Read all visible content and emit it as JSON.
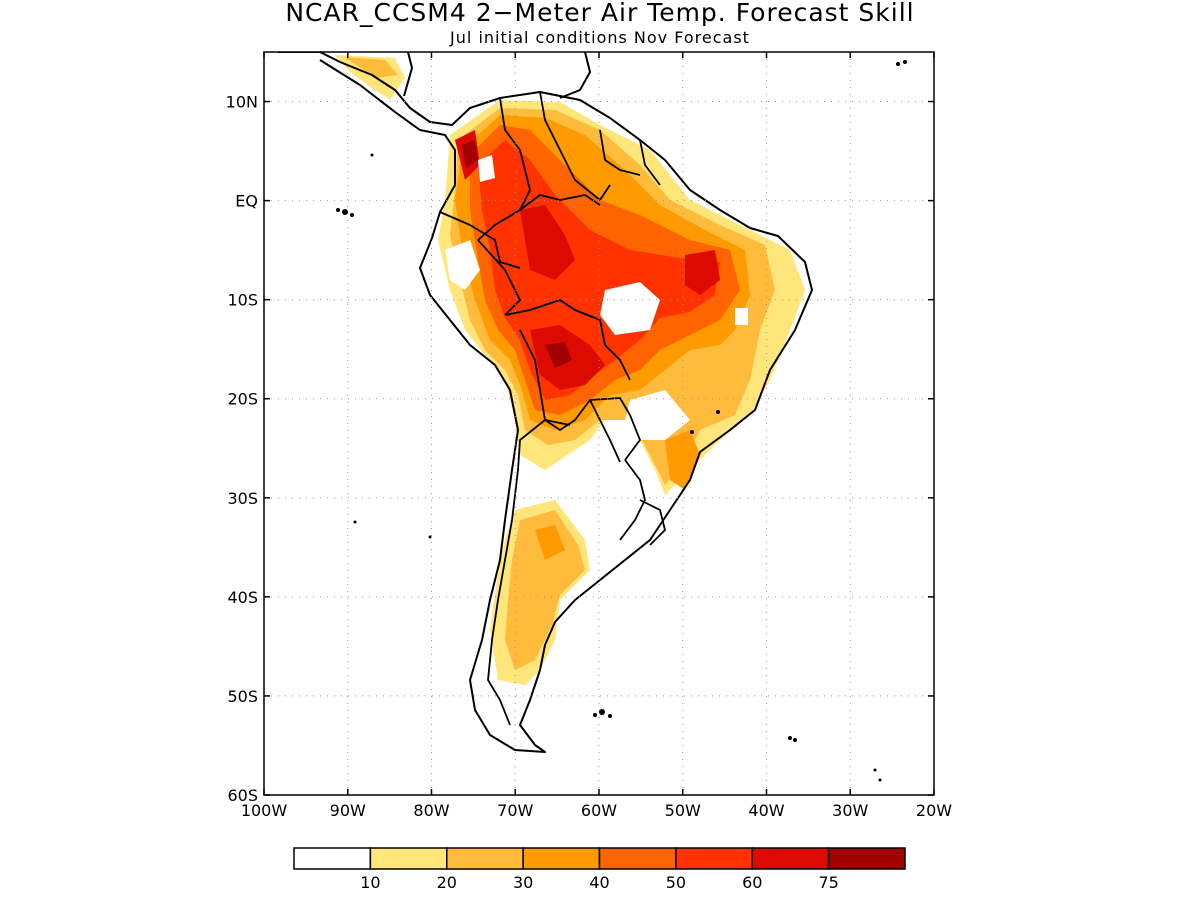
{
  "title": "NCAR_CCSM4 2−Meter Air Temp. Forecast Skill",
  "subtitle": "Jul initial conditions  Nov Forecast",
  "map": {
    "lon_range": [
      -100,
      -20
    ],
    "lat_range": [
      -60,
      15
    ],
    "lon_ticks": [
      {
        "value": -100,
        "label": "100W"
      },
      {
        "value": -90,
        "label": "90W"
      },
      {
        "value": -80,
        "label": "80W"
      },
      {
        "value": -70,
        "label": "70W"
      },
      {
        "value": -60,
        "label": "60W"
      },
      {
        "value": -50,
        "label": "50W"
      },
      {
        "value": -40,
        "label": "40W"
      },
      {
        "value": -30,
        "label": "30W"
      },
      {
        "value": -20,
        "label": "20W"
      }
    ],
    "lat_ticks": [
      {
        "value": 10,
        "label": "10N"
      },
      {
        "value": 0,
        "label": "EQ"
      },
      {
        "value": -10,
        "label": "10S"
      },
      {
        "value": -20,
        "label": "20S"
      },
      {
        "value": -30,
        "label": "30S"
      },
      {
        "value": -40,
        "label": "40S"
      },
      {
        "value": -50,
        "label": "50S"
      },
      {
        "value": -60,
        "label": "60S"
      }
    ],
    "grid": "dotted"
  },
  "legend": {
    "labels": [
      "10",
      "20",
      "30",
      "40",
      "50",
      "60",
      "75"
    ],
    "colors": [
      "#ffffff",
      "#ffe57a",
      "#ffbb3c",
      "#ff9a00",
      "#ff6400",
      "#ff3200",
      "#dc0a00",
      "#a00000"
    ]
  }
}
